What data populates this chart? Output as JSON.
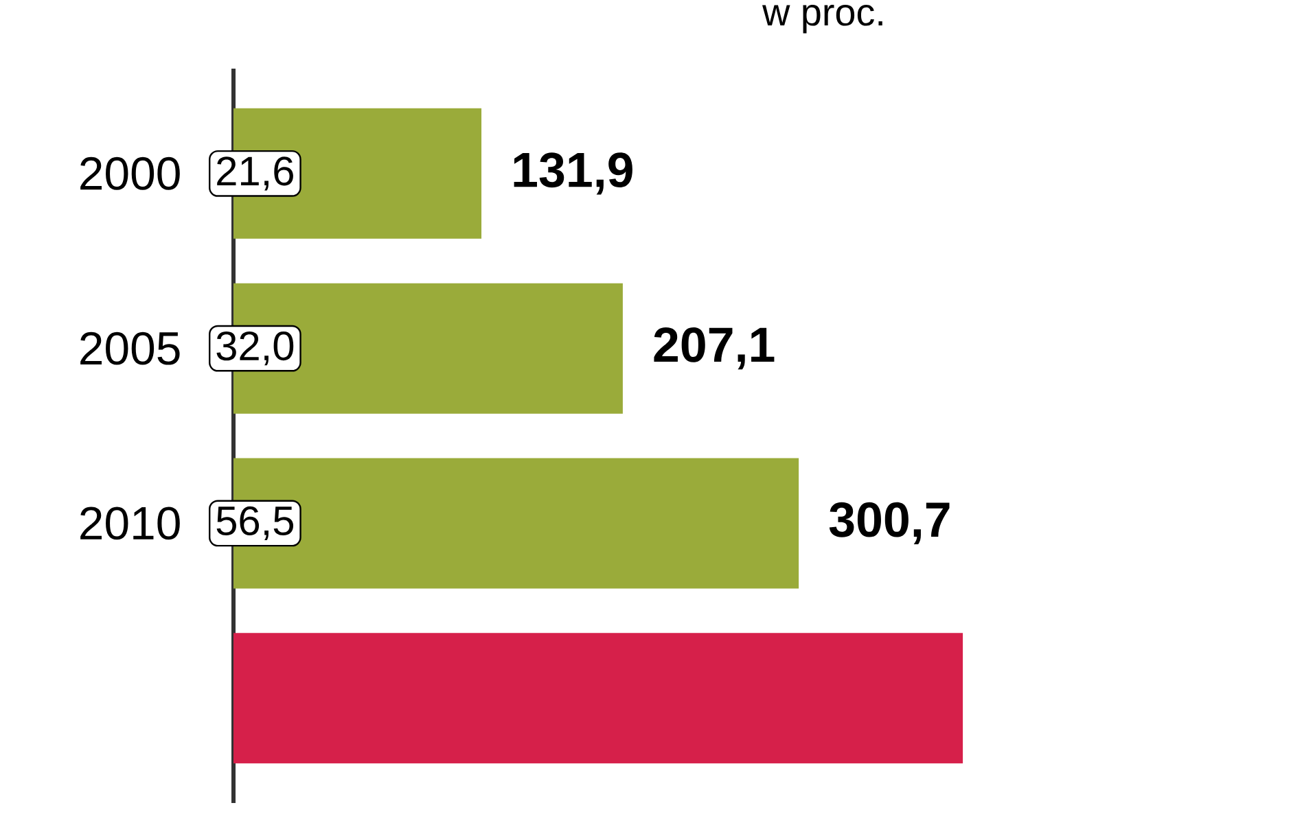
{
  "chart_data": {
    "type": "bar",
    "orientation": "horizontal",
    "title": "w proc.",
    "categories": [
      "2000",
      "2005",
      "2010",
      null
    ],
    "values": [
      131.9,
      207.1,
      300.7,
      388
    ],
    "colors": [
      "#9aab3a",
      "#9aab3a",
      "#9aab3a",
      "#d6204a"
    ],
    "value_labels": [
      "131,9",
      "207,1",
      "300,7",
      null
    ],
    "annotations": [
      "21,6",
      "32,0",
      "56,5"
    ],
    "tick_labels": "y"
  }
}
